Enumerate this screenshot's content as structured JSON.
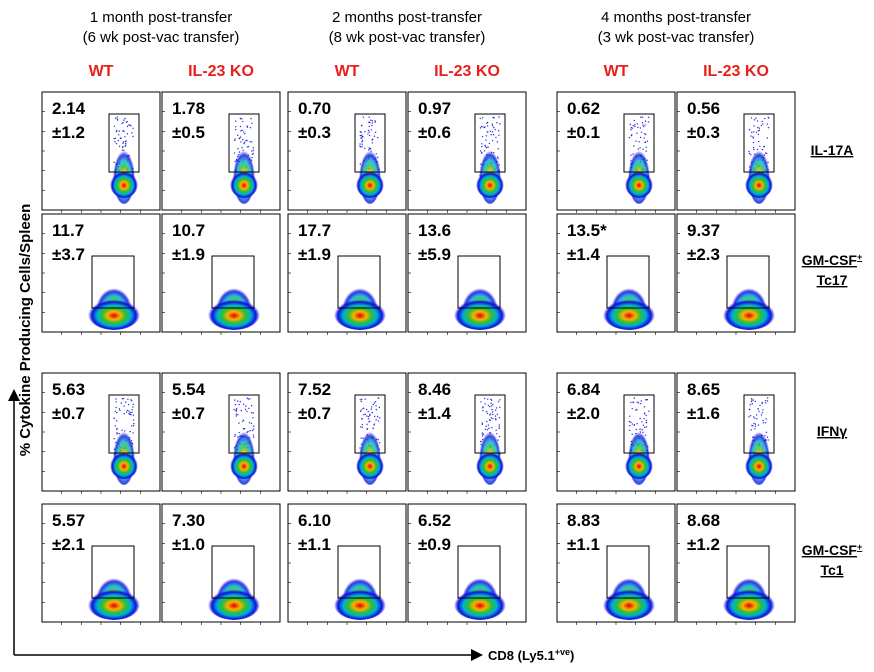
{
  "groups": [
    {
      "line1": "1 month post-transfer",
      "line2": "(6 wk post-vac transfer)",
      "columns": [
        "WT",
        "IL-23 KO"
      ]
    },
    {
      "line1": "2 months post-transfer",
      "line2": "(8 wk post-vac transfer)",
      "columns": [
        "WT",
        "IL-23 KO"
      ]
    },
    {
      "line1": "4 months post-transfer",
      "line2": "(3 wk post-vac transfer)",
      "columns": [
        "WT",
        "IL-23 KO"
      ]
    }
  ],
  "rows": [
    {
      "label": "IL-17A",
      "cells": [
        {
          "value": "2.14",
          "sd": "±1.2"
        },
        {
          "value": "1.78",
          "sd": "±0.5"
        },
        {
          "value": "0.70",
          "sd": "±0.3"
        },
        {
          "value": "0.97",
          "sd": "±0.6"
        },
        {
          "value": "0.62",
          "sd": "±0.1"
        },
        {
          "value": "0.56",
          "sd": "±0.3"
        }
      ]
    },
    {
      "label": "GM-CSF",
      "sup": "+",
      "label2": "Tc17",
      "cells": [
        {
          "value": "11.7",
          "sd": "±3.7"
        },
        {
          "value": "10.7",
          "sd": "±1.9"
        },
        {
          "value": "17.7",
          "sd": "±1.9"
        },
        {
          "value": "13.6",
          "sd": "±5.9"
        },
        {
          "value": "13.5*",
          "sd": "±1.4"
        },
        {
          "value": "9.37",
          "sd": "±2.3"
        }
      ]
    },
    {
      "label": "IFNγ",
      "cells": [
        {
          "value": "5.63",
          "sd": "±0.7"
        },
        {
          "value": "5.54",
          "sd": "±0.7"
        },
        {
          "value": "7.52",
          "sd": "±0.7"
        },
        {
          "value": "8.46",
          "sd": "±1.4"
        },
        {
          "value": "6.84",
          "sd": "±2.0"
        },
        {
          "value": "8.65",
          "sd": "±1.6"
        }
      ]
    },
    {
      "label": "GM-CSF",
      "sup": "+",
      "label2": "Tc1",
      "cells": [
        {
          "value": "5.57",
          "sd": "±2.1"
        },
        {
          "value": "7.30",
          "sd": "±1.0"
        },
        {
          "value": "6.10",
          "sd": "±1.1"
        },
        {
          "value": "6.52",
          "sd": "±0.9"
        },
        {
          "value": "8.83",
          "sd": "±1.1"
        },
        {
          "value": "8.68",
          "sd": "±1.2"
        }
      ]
    }
  ],
  "y_axis_label": "% Cytokine Producing Cells/Spleen",
  "x_axis_label": {
    "main": "CD8 (Ly5.1",
    "sup": "+ve",
    "end": ")"
  }
}
